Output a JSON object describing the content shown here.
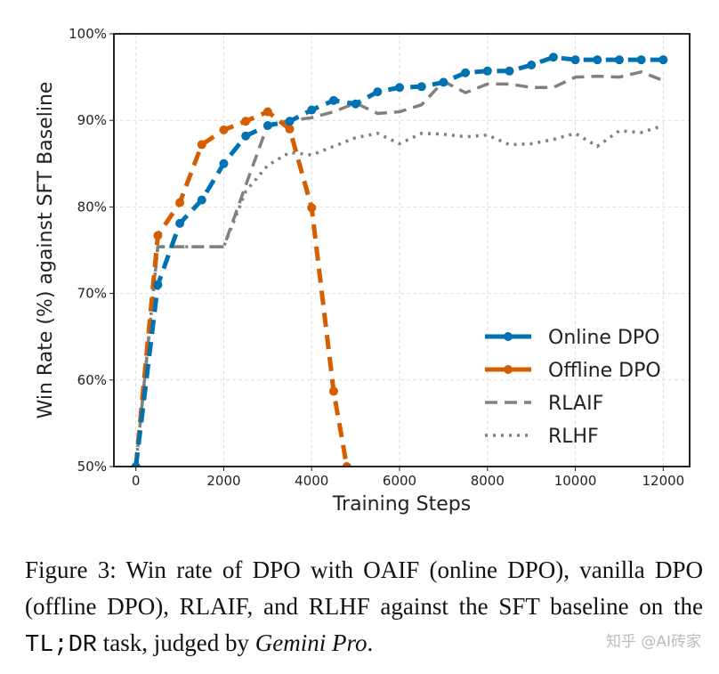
{
  "chart_data": {
    "type": "line",
    "xlabel": "Training Steps",
    "ylabel": "Win Rate (%) against SFT Baseline",
    "xlim": [
      -500,
      12600
    ],
    "ylim": [
      50,
      100
    ],
    "xticks": [
      0,
      2000,
      4000,
      6000,
      8000,
      10000,
      12000
    ],
    "xtick_labels": [
      "0",
      "2000",
      "4000",
      "6000",
      "8000",
      "10000",
      "12000"
    ],
    "yticks": [
      50,
      60,
      70,
      80,
      90,
      100
    ],
    "ytick_labels": [
      "50%",
      "60%",
      "70%",
      "80%",
      "90%",
      "100%"
    ],
    "grid": true,
    "legend_placement": "bottom-right",
    "series": [
      {
        "name": "Online DPO",
        "color": "#0072b2",
        "style": "dashed-marker",
        "x": [
          0,
          500,
          1000,
          1500,
          2000,
          2500,
          3000,
          3500,
          4000,
          4500,
          5000,
          5500,
          6000,
          6500,
          7000,
          7500,
          8000,
          8500,
          9000,
          9500,
          10000,
          10500,
          11000,
          11500,
          12000
        ],
        "y": [
          50,
          71.0,
          78.1,
          80.8,
          85.0,
          88.2,
          89.4,
          89.9,
          91.2,
          92.3,
          91.9,
          93.3,
          93.8,
          93.9,
          94.4,
          95.5,
          95.7,
          95.7,
          96.4,
          97.3,
          97.0,
          97.0,
          97.0,
          97.0,
          97.0
        ]
      },
      {
        "name": "Offline DPO",
        "color": "#d55e00",
        "style": "dashed-marker",
        "x": [
          0,
          500,
          1000,
          1500,
          2000,
          2500,
          3000,
          3500,
          4000,
          4500,
          4800
        ],
        "y": [
          50,
          76.7,
          80.5,
          87.2,
          88.9,
          89.9,
          91.0,
          89.0,
          79.9,
          58.7,
          50
        ]
      },
      {
        "name": "RLAIF",
        "color": "#808080",
        "style": "dashed",
        "x": [
          0,
          500,
          1000,
          1500,
          2000,
          2500,
          3000,
          3500,
          4000,
          4500,
          5000,
          5500,
          6000,
          6500,
          7000,
          7500,
          8000,
          8500,
          9000,
          9500,
          10000,
          10500,
          11000,
          11500,
          12000
        ],
        "y": [
          50,
          75.4,
          75.4,
          75.4,
          75.4,
          82.5,
          89.5,
          90.0,
          90.3,
          91.0,
          92.0,
          90.8,
          91.0,
          91.8,
          94.5,
          93.2,
          94.2,
          94.2,
          93.8,
          93.8,
          95.0,
          95.1,
          95.0,
          95.6,
          94.6
        ]
      },
      {
        "name": "RLHF",
        "color": "#808080",
        "style": "dotted",
        "x": [
          0,
          500,
          1000,
          1500,
          2000,
          2500,
          3000,
          3500,
          4000,
          4500,
          5000,
          5500,
          6000,
          6500,
          7000,
          7500,
          8000,
          8500,
          9000,
          9500,
          10000,
          10500,
          11000,
          11500,
          12000
        ],
        "y": [
          50,
          75.4,
          75.4,
          75.4,
          75.4,
          81.8,
          84.8,
          86.3,
          86.0,
          87.0,
          88.0,
          88.5,
          87.3,
          88.5,
          88.4,
          88.1,
          88.3,
          87.2,
          87.3,
          87.8,
          88.5,
          87.0,
          88.8,
          88.6,
          89.4
        ]
      }
    ]
  },
  "caption": {
    "prefix": "Figure 3: Win rate of DPO with OAIF (online DPO), vanilla DPO (offline DPO), RLAIF, and RLHF against the SFT baseline on the ",
    "task_a": "TL;",
    "task_b": "DR",
    "middle": " task, judged by ",
    "judge": "Gemini Pro",
    "suffix": "."
  },
  "watermark": "知乎 @AI砖家"
}
